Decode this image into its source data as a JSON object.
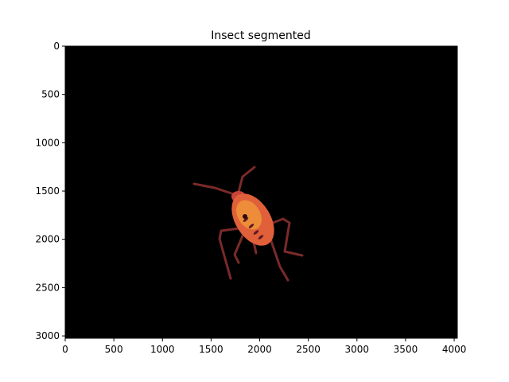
{
  "chart_data": {
    "type": "image",
    "title": "Insect segmented",
    "xlabel": "",
    "ylabel": "",
    "xlim": [
      0,
      4032
    ],
    "ylim": [
      3024,
      0
    ],
    "x_ticks": [
      0,
      500,
      1000,
      1500,
      2000,
      2500,
      3000,
      3500,
      4000
    ],
    "x_tick_labels": [
      "0",
      "500",
      "1000",
      "1500",
      "2000",
      "2500",
      "3000",
      "3500",
      "4000"
    ],
    "y_ticks": [
      0,
      500,
      1000,
      1500,
      2000,
      2500,
      3000
    ],
    "y_tick_labels": [
      "0",
      "500",
      "1000",
      "1500",
      "2000",
      "2500",
      "3000"
    ],
    "grid": false,
    "background_color": "#000000",
    "subject": {
      "center": [
        2000,
        1800
      ],
      "body_color": "#e0603a",
      "leg_color": "#7a2a2a"
    }
  }
}
